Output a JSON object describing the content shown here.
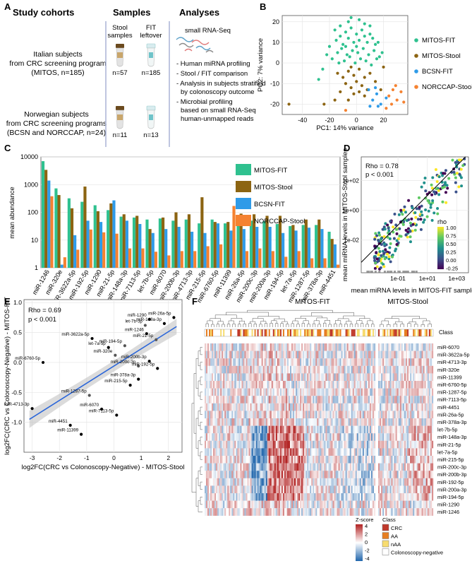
{
  "panels": {
    "a": "A",
    "b": "B",
    "c": "C",
    "d": "D",
    "e": "E",
    "f": "F"
  },
  "panel_a": {
    "headers": [
      "Study cohorts",
      "Samples",
      "Analyses"
    ],
    "cohort1": [
      "Italian subjects",
      "from CRC screening program",
      "(MITOS, n=185)"
    ],
    "cohort2": [
      "Norwegian subjects",
      "from CRC screening programs",
      "(BCSN and NORCCAP, n=24)"
    ],
    "stool_label": [
      "Stool",
      "samples"
    ],
    "fit_label": [
      "FIT",
      "leftover"
    ],
    "counts": [
      "n=57",
      "n=185",
      "n=11",
      "n=13"
    ],
    "analysis_title": "small RNA-Seq",
    "analyses": [
      "- Human miRNA profiling",
      "- Stool / FIT comparison",
      "- Analysis in subjects stratified",
      "  by colonoscopy outcome",
      "- Microbial profiling",
      "  based on small RNA-Seq",
      "  human-unmapped reads"
    ],
    "colors": {
      "tube_cap": "#6b4a1e",
      "tube_body": "#e6e6e6",
      "fit_cap": "#d8ecef",
      "divider": "#aab4d6"
    }
  },
  "chart_data": [
    {
      "id": "B",
      "type": "scatter",
      "xlabel": "PC1: 14% variance",
      "ylabel": "PC2: 7% variance",
      "xlim": [
        -55,
        38
      ],
      "ylim": [
        -25,
        23
      ],
      "xticks": [
        "-40",
        "-20",
        "0",
        "20"
      ],
      "xtick_values": [
        -40,
        -20,
        0,
        20
      ],
      "yticks": [
        "-20",
        "-10",
        "0",
        "10",
        "20"
      ],
      "ytick_values": [
        -20,
        -10,
        0,
        10,
        20
      ],
      "series": [
        {
          "name": "MITOS-FIT",
          "color": "#2fc18f",
          "points": [
            [
              -15,
              11
            ],
            [
              -12,
              13
            ],
            [
              -10,
              9
            ],
            [
              -8,
              15
            ],
            [
              -6,
              12
            ],
            [
              -4,
              17
            ],
            [
              -2,
              10
            ],
            [
              0,
              14
            ],
            [
              2,
              11
            ],
            [
              4,
              16
            ],
            [
              6,
              13
            ],
            [
              8,
              10
            ],
            [
              10,
              14
            ],
            [
              12,
              12
            ],
            [
              14,
              9
            ],
            [
              -14,
              5
            ],
            [
              -11,
              7
            ],
            [
              -7,
              4
            ],
            [
              -3,
              6
            ],
            [
              1,
              5
            ],
            [
              5,
              7
            ],
            [
              9,
              4
            ],
            [
              13,
              6
            ],
            [
              17,
              3
            ],
            [
              -18,
              2
            ],
            [
              -13,
              0
            ],
            [
              -9,
              1
            ],
            [
              -5,
              3
            ],
            [
              -1,
              0
            ],
            [
              3,
              2
            ],
            [
              7,
              1
            ],
            [
              11,
              -1
            ],
            [
              15,
              2
            ],
            [
              19,
              5
            ],
            [
              -20,
              8
            ],
            [
              -16,
              16
            ],
            [
              -6,
              20
            ],
            [
              2,
              21
            ],
            [
              6,
              19
            ],
            [
              -22,
              4
            ],
            [
              -25,
              -3
            ],
            [
              -28,
              -8
            ],
            [
              -12,
              18
            ],
            [
              10,
              18
            ],
            [
              -4,
              22
            ],
            [
              0,
              8
            ],
            [
              -8,
              8
            ],
            [
              16,
              10
            ]
          ]
        },
        {
          "name": "MITOS-Stool",
          "color": "#8c6412",
          "points": [
            [
              -14,
              -5
            ],
            [
              -10,
              -7
            ],
            [
              -6,
              -4
            ],
            [
              -2,
              -6
            ],
            [
              2,
              -3
            ],
            [
              6,
              -7
            ],
            [
              10,
              -5
            ],
            [
              -8,
              -10
            ],
            [
              -4,
              -12
            ],
            [
              0,
              -9
            ],
            [
              4,
              -11
            ],
            [
              8,
              -13
            ],
            [
              -12,
              -14
            ],
            [
              -2,
              -15
            ],
            [
              6,
              -16
            ],
            [
              -16,
              -18
            ],
            [
              -6,
              -18
            ],
            [
              14,
              -9
            ],
            [
              18,
              -13
            ],
            [
              -24,
              -20
            ],
            [
              -50,
              -20
            ],
            [
              -4,
              -2
            ],
            [
              2,
              -14
            ],
            [
              20,
              -2
            ]
          ]
        },
        {
          "name": "BCSN-FIT",
          "color": "#2f9be8",
          "points": [
            [
              12,
              -18
            ],
            [
              15,
              -15
            ],
            [
              18,
              -20
            ],
            [
              10,
              -21
            ],
            [
              22,
              -17
            ],
            [
              9,
              -13
            ],
            [
              14,
              -12
            ],
            [
              16,
              -21
            ]
          ]
        },
        {
          "name": "NORCCAP-Stool",
          "color": "#f58231",
          "points": [
            [
              24,
              -16
            ],
            [
              27,
              -13
            ],
            [
              30,
              -18
            ],
            [
              33,
              -14
            ],
            [
              26,
              -20
            ],
            [
              35,
              -19
            ],
            [
              22,
              -22
            ],
            [
              29,
              -11
            ],
            [
              -8,
              -23
            ]
          ]
        }
      ]
    },
    {
      "id": "C",
      "type": "bar",
      "ylabel": "mean abundance",
      "yscale": "log10",
      "ylim": [
        1,
        10000
      ],
      "yticks": [
        "1",
        "10",
        "100",
        "1000",
        "10000"
      ],
      "ytick_values": [
        1,
        10,
        100,
        1000,
        10000
      ],
      "categories": [
        "miR-1246",
        "miR-320e",
        "miR-3622a-5p",
        "miR-192-5p",
        "miR-1290",
        "miR-21-5p",
        "miR-148a-3p",
        "miR-7113-5p",
        "let-7b-5p",
        "miR-6070",
        "miR-200b-3p",
        "miR-4713-3p",
        "miR-215-5p",
        "miR-6760-5p",
        "miR-11399",
        "miR-26a-5p",
        "miR-200c-3p",
        "miR-200a-3p",
        "miR-194-5p",
        "let-7a-5p",
        "miR-1287-5p",
        "miR-378a-3p",
        "miR-4451"
      ],
      "series": [
        {
          "name": "MITOS-FIT",
          "color": "#2fc18f",
          "values": [
            7000,
            730,
            320,
            240,
            180,
            120,
            70,
            65,
            55,
            60,
            50,
            55,
            40,
            55,
            40,
            48,
            50,
            48,
            38,
            32,
            35,
            35,
            20
          ]
        },
        {
          "name": "MITOS-Stool",
          "color": "#8c6412",
          "values": [
            3400,
            420,
            140,
            850,
            110,
            210,
            85,
            75,
            25,
            65,
            100,
            85,
            350,
            45,
            45,
            90,
            85,
            75,
            75,
            35,
            55,
            55,
            11
          ]
        },
        {
          "name": "BCSN-FIT",
          "color": "#2f9be8",
          "values": [
            1400,
            1.3,
            15,
            50,
            45,
            270,
            50,
            38,
            18,
            25,
            30,
            20,
            18,
            40,
            22,
            25,
            30,
            30,
            18,
            22,
            28,
            25,
            7
          ]
        },
        {
          "name": "NORCCAP-Stool",
          "color": "#f58231",
          "values": [
            380,
            2.4,
            4.5,
            24,
            19,
            17,
            5,
            5,
            3.8,
            2.8,
            4,
            4,
            6,
            7,
            170,
            4,
            5,
            4,
            2.5,
            4,
            2.2,
            2.2,
            1.3
          ]
        }
      ]
    },
    {
      "id": "D",
      "type": "scatter",
      "xlabel": "mean miRNA levels in MITOS-FIT samples",
      "ylabel": "mean miRNA levels in MITOS-Stool samples",
      "xscale": "log10",
      "yscale": "log10",
      "xlim": [
        -3.5,
        3.8
      ],
      "ylim": [
        -4.2,
        3.6
      ],
      "xticks": [
        "1e-01",
        "1e+01",
        "1e+03"
      ],
      "xtick_values": [
        -1,
        1,
        3
      ],
      "yticks": [
        "1e-02",
        "1e+00",
        "1e+02"
      ],
      "ytick_values": [
        -2,
        0,
        2
      ],
      "annotation": [
        "Rho = 0.78",
        "p < 0.001"
      ],
      "legend_title": "rho",
      "legend_ticks": [
        "1.00",
        "0.75",
        "0.50",
        "0.25",
        "0.00",
        "-0.25"
      ],
      "colorscale": [
        "#fde725",
        "#5ec962",
        "#21918c",
        "#3b528b",
        "#440154"
      ]
    },
    {
      "id": "E",
      "type": "scatter",
      "xlabel": "log2FC(CRC vs Colonoscopy-Negative) - MITOS-Stool",
      "ylabel": "log2FC(CRC vs Colonoscopy-Negative) - MITOS-FIT",
      "xlim": [
        -3.3,
        2.5
      ],
      "ylim": [
        -1.5,
        1.05
      ],
      "xticks": [
        "-3",
        "-2",
        "-1",
        "0",
        "1",
        "2"
      ],
      "xtick_values": [
        -3,
        -2,
        -1,
        0,
        1,
        2
      ],
      "yticks": [
        "-1.0",
        "-0.5",
        "0.0",
        "0.5",
        "1.0"
      ],
      "ytick_values": [
        -1,
        -0.5,
        0,
        0.5,
        1
      ],
      "annotation": [
        "Rho = 0.69",
        "p < 0.001"
      ],
      "fit_line": [
        [
          -3.1,
          -0.95
        ],
        [
          2.3,
          0.6
        ]
      ],
      "points": [
        {
          "label": "miR-26a-5p",
          "x": 2.2,
          "y": 0.75
        },
        {
          "label": "miR-148a-3p",
          "x": 1.85,
          "y": 0.65
        },
        {
          "label": "miR-1290",
          "x": 1.3,
          "y": 0.72
        },
        {
          "label": "let-7b-5p",
          "x": 1.15,
          "y": 0.62
        },
        {
          "label": "miR-1246",
          "x": 1.2,
          "y": 0.48
        },
        {
          "label": "miR-21-5p",
          "x": 1.55,
          "y": 0.38
        },
        {
          "label": "miR-3622a-5p",
          "x": -0.8,
          "y": 0.4
        },
        {
          "label": "let-7a-5p",
          "x": -0.2,
          "y": 0.25
        },
        {
          "label": "miR-194-5p",
          "x": 0.4,
          "y": 0.28
        },
        {
          "label": "miR-320e",
          "x": 0.05,
          "y": 0.12
        },
        {
          "label": "miR-200b-3p",
          "x": 1.3,
          "y": 0.02
        },
        {
          "label": "miR-200c-3p",
          "x": 0.9,
          "y": -0.06
        },
        {
          "label": "miR-192-5p",
          "x": 1.6,
          "y": -0.1
        },
        {
          "label": "miR-6760-5p",
          "x": -2.6,
          "y": 0.0
        },
        {
          "label": "miR-378a-3p",
          "x": 0.9,
          "y": -0.28
        },
        {
          "label": "miR-215-5p",
          "x": 0.6,
          "y": -0.38
        },
        {
          "label": "miR-1287-5p",
          "x": -0.9,
          "y": -0.55
        },
        {
          "label": "miR-6070",
          "x": -0.45,
          "y": -0.78
        },
        {
          "label": "miR-4713-3p",
          "x": -3.0,
          "y": -0.77
        },
        {
          "label": "miR-7113-5p",
          "x": 0.1,
          "y": -0.88
        },
        {
          "label": "miR-4451",
          "x": -1.6,
          "y": -1.05
        },
        {
          "label": "miR-11399",
          "x": -1.2,
          "y": -1.2
        }
      ]
    },
    {
      "id": "F",
      "type": "heatmap",
      "groups": [
        "MITOS-FIT",
        "MITOS-Stool"
      ],
      "class_label": "Class",
      "rows": [
        "miR-6070",
        "miR-3622a-5p",
        "miR-4713-3p",
        "miR-320e",
        "miR-11399",
        "miR-6760-5p",
        "miR-1287-5p",
        "miR-7113-5p",
        "miR-4451",
        "miR-26a-5p",
        "miR-378a-3p",
        "let-7b-5p",
        "miR-148a-3p",
        "miR-21-5p",
        "let-7a-5p",
        "miR-215-5p",
        "miR-200c-3p",
        "miR-200b-3p",
        "miR-192-5p",
        "miR-200a-3p",
        "miR-194-5p",
        "miR-1290",
        "miR-1246"
      ],
      "zscore_title": "Z-score",
      "zscore_ticks": [
        "4",
        "2",
        "0",
        "-2",
        "-4"
      ],
      "legend_class_title": "Class",
      "classes": [
        {
          "name": "CRC",
          "color": "#c0392b"
        },
        {
          "name": "AA",
          "color": "#e67e22"
        },
        {
          "name": "nAA",
          "color": "#f7dc6f"
        },
        {
          "name": "Colonoscopy-negative",
          "color": "#ffffff"
        }
      ]
    }
  ]
}
